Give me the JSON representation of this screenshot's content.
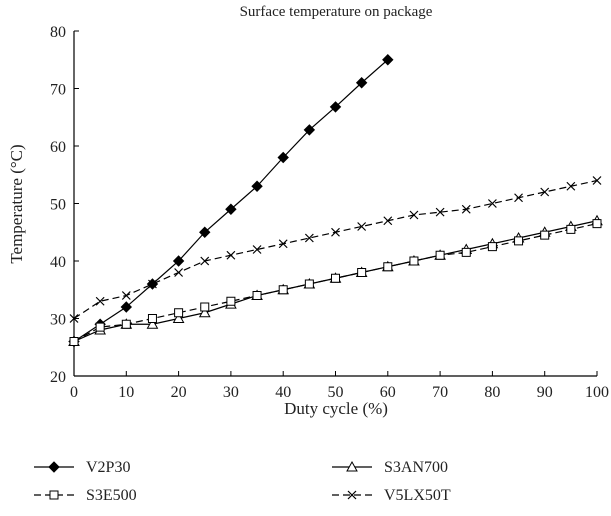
{
  "chart_data": {
    "type": "line",
    "title": "Surface temperature on package",
    "xlabel": "Duty cycle (%)",
    "ylabel": "Temperature (°C)",
    "xlim": [
      0,
      100
    ],
    "ylim": [
      20,
      80
    ],
    "x_ticks": [
      0,
      10,
      20,
      30,
      40,
      50,
      60,
      70,
      80,
      90,
      100
    ],
    "y_ticks": [
      20,
      30,
      40,
      50,
      60,
      70,
      80
    ],
    "grid": false,
    "legend_position": "bottom",
    "series": [
      {
        "name": "V2P30",
        "marker": "filled-diamond",
        "line": "solid",
        "color": "#000000",
        "x": [
          0,
          5,
          10,
          15,
          20,
          25,
          30,
          35,
          40,
          45,
          50,
          55,
          60
        ],
        "y": [
          26,
          29,
          32,
          36,
          40,
          45,
          49,
          53,
          58,
          62.8,
          66.8,
          71,
          75
        ]
      },
      {
        "name": "S3AN700",
        "marker": "open-triangle",
        "line": "solid",
        "color": "#000000",
        "x": [
          0,
          5,
          10,
          15,
          20,
          25,
          30,
          35,
          40,
          45,
          50,
          55,
          60,
          65,
          70,
          75,
          80,
          85,
          90,
          95,
          100
        ],
        "y": [
          26,
          28,
          29,
          29,
          30,
          31,
          32.5,
          34,
          35,
          36,
          37,
          38,
          39,
          40,
          41,
          42,
          43,
          44,
          45,
          46,
          47
        ]
      },
      {
        "name": "S3E500",
        "marker": "open-square",
        "line": "dashed",
        "color": "#000000",
        "x": [
          0,
          5,
          10,
          15,
          20,
          25,
          30,
          35,
          40,
          45,
          50,
          55,
          60,
          65,
          70,
          75,
          80,
          85,
          90,
          95,
          100
        ],
        "y": [
          26,
          28.5,
          29,
          30,
          31,
          32,
          33,
          34,
          35,
          36,
          37,
          38,
          39,
          40,
          41,
          41.5,
          42.5,
          43.5,
          44.5,
          45.5,
          46.5
        ]
      },
      {
        "name": "V5LX50T",
        "marker": "x-cross",
        "line": "dashed",
        "color": "#000000",
        "x": [
          0,
          5,
          10,
          15,
          20,
          25,
          30,
          35,
          40,
          45,
          50,
          55,
          60,
          65,
          70,
          75,
          80,
          85,
          90,
          95,
          100
        ],
        "y": [
          30,
          33,
          34,
          36,
          38,
          40,
          41,
          42,
          43,
          44,
          45,
          46,
          47,
          48,
          48.5,
          49,
          50,
          51,
          52,
          53,
          54
        ]
      }
    ]
  }
}
